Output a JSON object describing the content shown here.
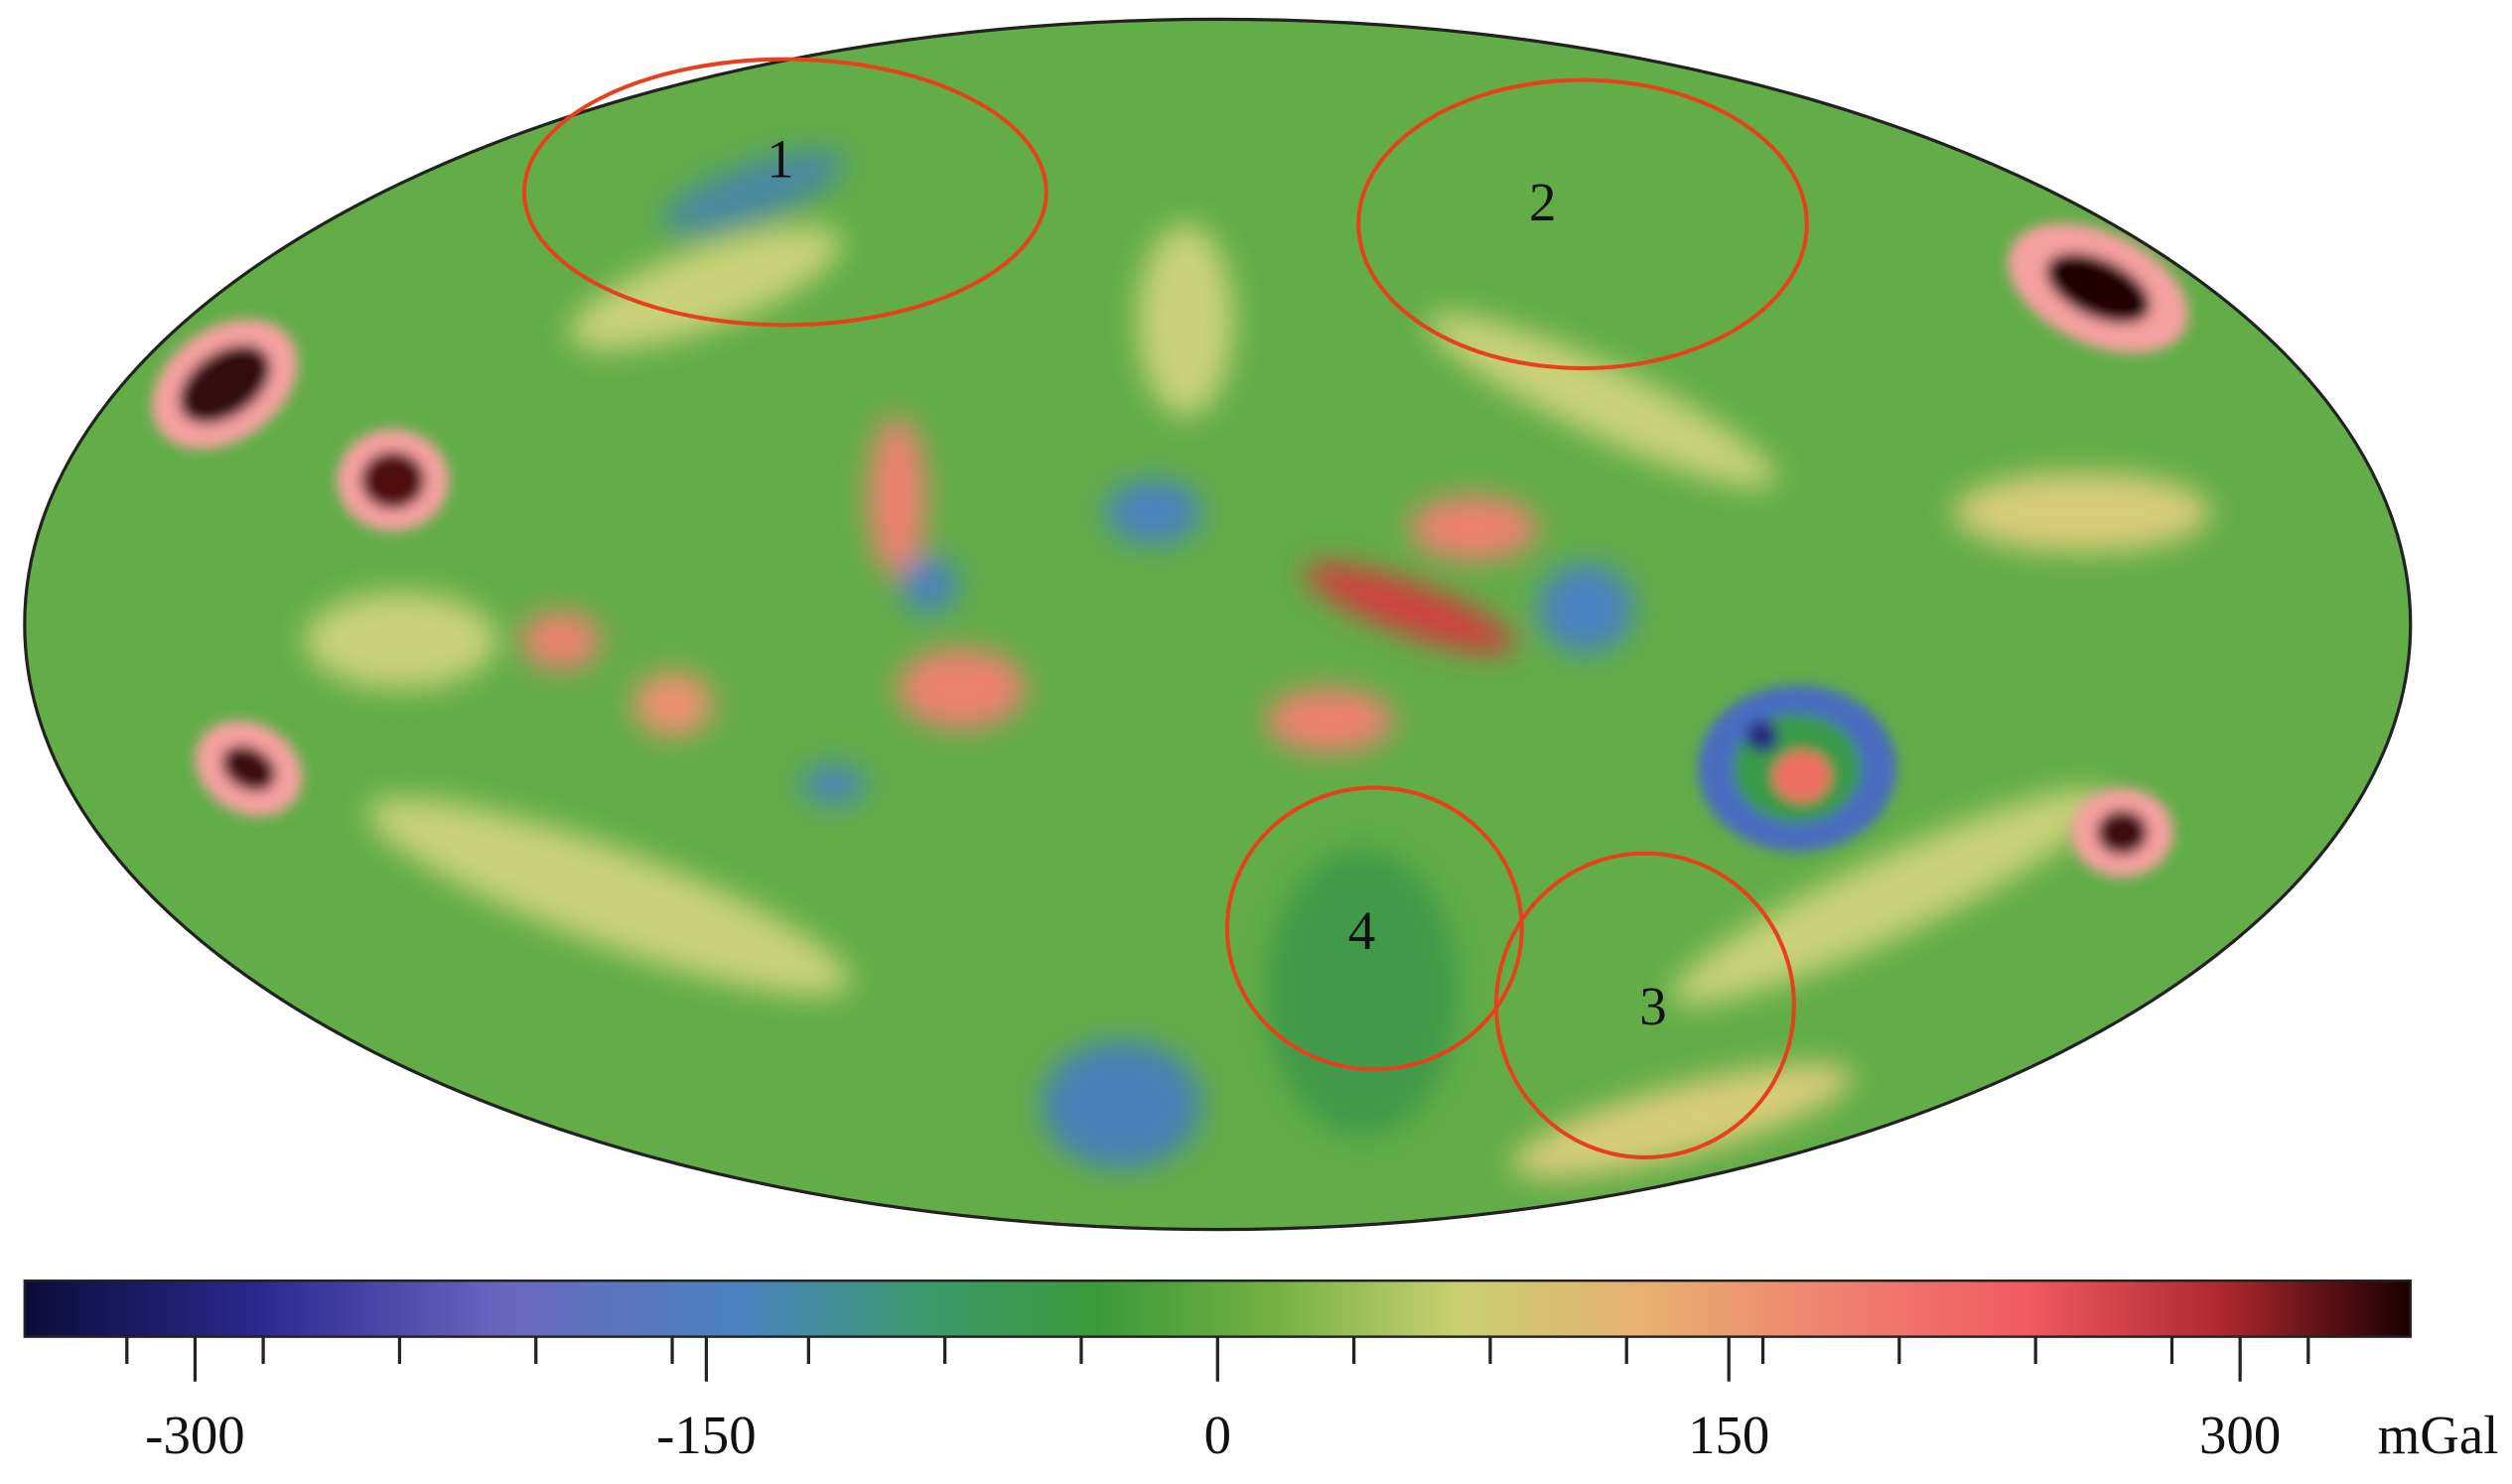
{
  "regions": [
    {
      "label": "1"
    },
    {
      "label": "2"
    },
    {
      "label": "3"
    },
    {
      "label": "4"
    }
  ],
  "colorbar": {
    "lim": [
      -350,
      350
    ],
    "ticks": [
      -300,
      -150,
      0,
      150,
      300
    ],
    "minor_ticks": [
      -320,
      -280,
      -240,
      -200,
      -160,
      -120,
      -80,
      -40,
      40,
      80,
      120,
      160,
      200,
      240,
      280,
      320
    ],
    "unit": "mGal"
  }
}
